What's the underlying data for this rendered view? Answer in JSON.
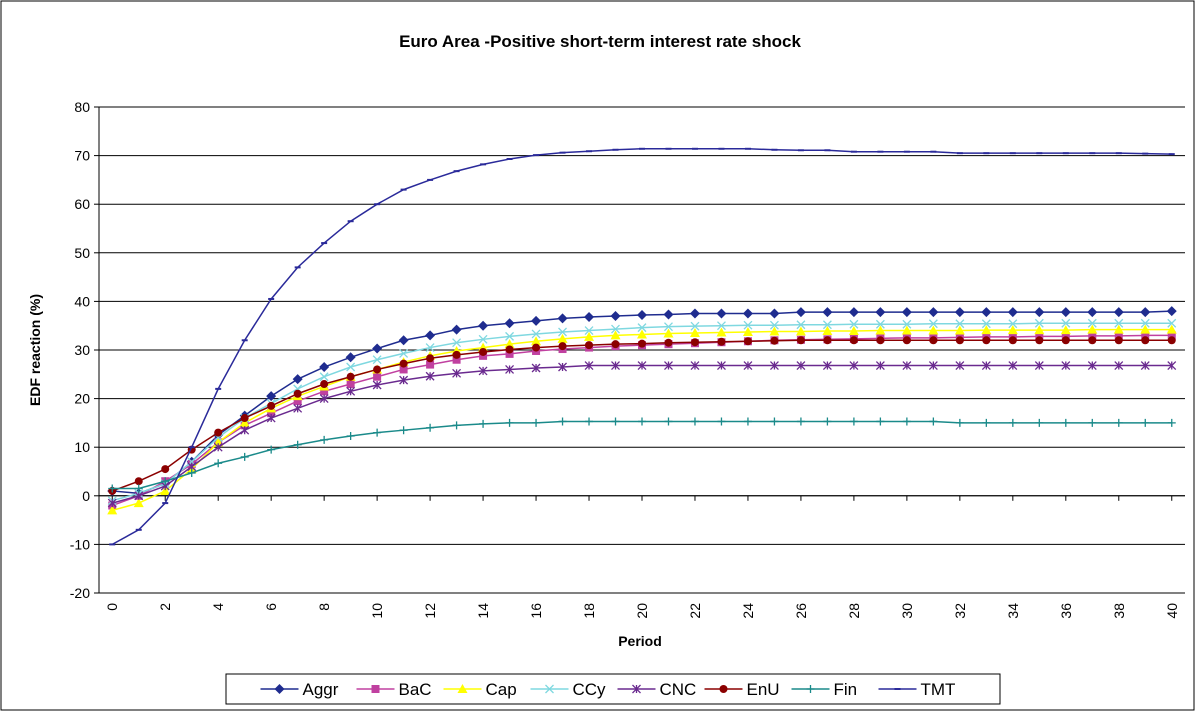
{
  "chart_data": {
    "type": "line",
    "title": "Euro Area -Positive short-term interest rate shock",
    "x_label": "Period",
    "y_label": "EDF reaction (%)",
    "x": [
      0,
      1,
      2,
      3,
      4,
      5,
      6,
      7,
      8,
      9,
      10,
      11,
      12,
      13,
      14,
      15,
      16,
      17,
      18,
      19,
      20,
      21,
      22,
      23,
      24,
      25,
      26,
      27,
      28,
      29,
      30,
      31,
      32,
      33,
      34,
      35,
      36,
      37,
      38,
      39,
      40
    ],
    "xlim": [
      -0.5,
      40.5
    ],
    "xticks": [
      0,
      2,
      4,
      6,
      8,
      10,
      12,
      14,
      16,
      18,
      20,
      22,
      24,
      26,
      28,
      30,
      32,
      34,
      36,
      38,
      40
    ],
    "ylim": [
      -20,
      80
    ],
    "yticks": [
      -20,
      -10,
      0,
      10,
      20,
      30,
      40,
      50,
      60,
      70,
      80
    ],
    "grid": true,
    "legend": "bottom",
    "series": [
      {
        "name": "Aggr",
        "color": "#1f2c8f",
        "marker": "diamond",
        "values": [
          1,
          0.5,
          2.5,
          7,
          12.5,
          16.5,
          20.5,
          24,
          26.5,
          28.5,
          30.3,
          32,
          33,
          34.2,
          35,
          35.5,
          36,
          36.5,
          36.8,
          37,
          37.2,
          37.3,
          37.5,
          37.5,
          37.5,
          37.5,
          37.8,
          37.8,
          37.8,
          37.8,
          37.8,
          37.8,
          37.8,
          37.8,
          37.8,
          37.8,
          37.8,
          37.8,
          37.8,
          37.8,
          38
        ]
      },
      {
        "name": "BaC",
        "color": "#c040a0",
        "marker": "square",
        "values": [
          -2,
          0,
          3,
          6.5,
          11,
          14.5,
          17,
          19.5,
          21.5,
          23,
          24.5,
          26,
          27,
          28,
          28.8,
          29.2,
          29.8,
          30.2,
          30.5,
          30.8,
          31,
          31.2,
          31.4,
          31.6,
          31.8,
          32,
          32.1,
          32.2,
          32.3,
          32.4,
          32.5,
          32.5,
          32.6,
          32.7,
          32.7,
          32.8,
          32.8,
          32.9,
          32.9,
          33,
          33
        ]
      },
      {
        "name": "Cap",
        "color": "#ffff00",
        "marker": "triangle",
        "values": [
          -3,
          -1.5,
          1,
          5.5,
          11,
          15,
          18,
          20.5,
          22.5,
          24.5,
          26,
          27.5,
          28.8,
          29.8,
          30.5,
          31.2,
          31.8,
          32.3,
          32.7,
          33,
          33.2,
          33.4,
          33.5,
          33.6,
          33.7,
          33.8,
          33.8,
          33.9,
          33.9,
          34,
          34,
          34,
          34,
          34.1,
          34.1,
          34.1,
          34.1,
          34.2,
          34.2,
          34.2,
          34.2
        ]
      },
      {
        "name": "CCy",
        "color": "#7fd8e0",
        "marker": "x",
        "values": [
          -1,
          0.5,
          2.5,
          7,
          12,
          16,
          19,
          22,
          24.5,
          26.5,
          28,
          29.3,
          30.5,
          31.5,
          32.2,
          32.8,
          33.3,
          33.7,
          34,
          34.3,
          34.6,
          34.8,
          34.9,
          35,
          35.1,
          35.1,
          35.2,
          35.2,
          35.3,
          35.3,
          35.3,
          35.4,
          35.4,
          35.4,
          35.4,
          35.5,
          35.5,
          35.5,
          35.5,
          35.5,
          35.5
        ]
      },
      {
        "name": "CNC",
        "color": "#6a2a8f",
        "marker": "star",
        "values": [
          -1.5,
          0,
          2,
          6,
          10,
          13.5,
          16,
          18,
          20,
          21.5,
          22.8,
          23.8,
          24.6,
          25.2,
          25.7,
          26,
          26.3,
          26.5,
          26.8,
          26.8,
          26.8,
          26.8,
          26.8,
          26.8,
          26.8,
          26.8,
          26.8,
          26.8,
          26.8,
          26.8,
          26.8,
          26.8,
          26.8,
          26.8,
          26.8,
          26.8,
          26.8,
          26.8,
          26.8,
          26.8,
          26.8
        ]
      },
      {
        "name": "EnU",
        "color": "#8b0000",
        "marker": "circle",
        "values": [
          1,
          3,
          5.5,
          9.5,
          13,
          16,
          18.5,
          21,
          23,
          24.5,
          26,
          27.2,
          28.3,
          29,
          29.6,
          30.1,
          30.5,
          30.8,
          31,
          31.2,
          31.3,
          31.5,
          31.6,
          31.7,
          31.8,
          31.9,
          32,
          32,
          32,
          32,
          32,
          32,
          32,
          32,
          32,
          32,
          32,
          32,
          32,
          32,
          32
        ]
      },
      {
        "name": "Fin",
        "color": "#1a8a8a",
        "marker": "plus",
        "values": [
          1.5,
          1.5,
          3,
          4.7,
          6.7,
          8,
          9.5,
          10.5,
          11.5,
          12.3,
          13,
          13.5,
          14,
          14.5,
          14.8,
          15,
          15,
          15.3,
          15.3,
          15.3,
          15.3,
          15.3,
          15.3,
          15.3,
          15.3,
          15.3,
          15.3,
          15.3,
          15.3,
          15.3,
          15.3,
          15.3,
          15,
          15,
          15,
          15,
          15,
          15,
          15,
          15,
          15
        ]
      },
      {
        "name": "TMT",
        "color": "#2a2a9a",
        "marker": "dash",
        "values": [
          -10,
          -7,
          -1.5,
          10,
          22,
          32,
          40.5,
          47,
          52,
          56.5,
          60,
          63,
          65,
          66.8,
          68.2,
          69.3,
          70.1,
          70.6,
          70.9,
          71.2,
          71.4,
          71.4,
          71.4,
          71.4,
          71.4,
          71.2,
          71.1,
          71.1,
          70.8,
          70.8,
          70.8,
          70.8,
          70.5,
          70.5,
          70.5,
          70.5,
          70.5,
          70.5,
          70.5,
          70.4,
          70.3
        ]
      }
    ]
  }
}
